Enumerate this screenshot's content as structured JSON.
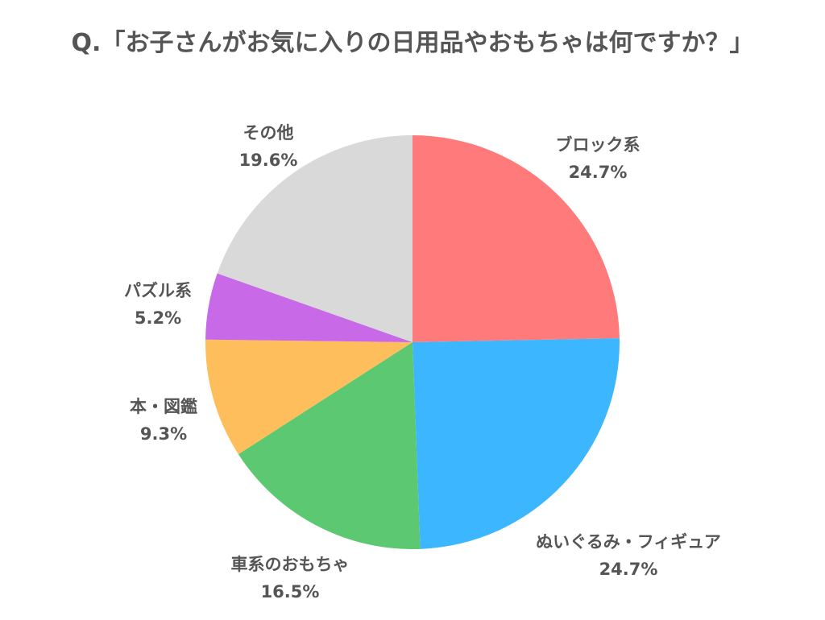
{
  "chart_data": {
    "type": "pie",
    "title": "Q.「お子さんがお気に入りの日用品やおもちゃは何ですか？」",
    "unit": "%",
    "slices": [
      {
        "label": "ブロック系",
        "value": 24.7,
        "display": "24.7%",
        "color": "#FF7B7B"
      },
      {
        "label": "ぬいぐるみ・フィギュア",
        "value": 24.7,
        "display": "24.7%",
        "color": "#3CB6FF"
      },
      {
        "label": "車系のおもちゃ",
        "value": 16.5,
        "display": "16.5%",
        "color": "#5DC872"
      },
      {
        "label": "本・図鑑",
        "value": 9.3,
        "display": "9.3%",
        "color": "#FDBE5B"
      },
      {
        "label": "パズル系",
        "value": 5.2,
        "display": "5.2%",
        "color": "#C86AE8"
      },
      {
        "label": "その他",
        "value": 19.6,
        "display": "19.6%",
        "color": "#D9D9D9"
      }
    ],
    "start_angle": "12 o'clock",
    "direction": "clockwise",
    "legend": "none"
  }
}
